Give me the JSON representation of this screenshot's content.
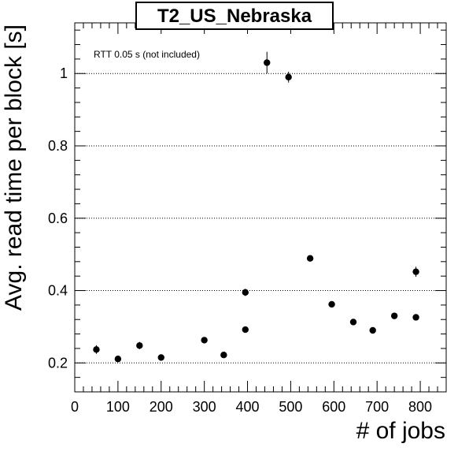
{
  "chart_data": {
    "type": "scatter",
    "title": "T2_US_Nebraska",
    "xlabel": "# of jobs",
    "ylabel": "Avg. read time per block [s]",
    "annotation": "RTT 0.05 s (not included)",
    "xlim": [
      0,
      860
    ],
    "ylim": [
      0.12,
      1.14
    ],
    "xticks": [
      0,
      100,
      200,
      300,
      400,
      500,
      600,
      700,
      800
    ],
    "yticks": [
      0.2,
      0.4,
      0.6,
      0.8,
      1.0
    ],
    "ytick_labels": [
      "0.2",
      "0.4",
      "0.6",
      "0.8",
      "1"
    ],
    "grid": "horizontal-dotted",
    "marker_color": "#000000",
    "points": [
      {
        "x": 50,
        "y": 0.237,
        "err": 0.012
      },
      {
        "x": 100,
        "y": 0.211,
        "err": 0.006
      },
      {
        "x": 150,
        "y": 0.248,
        "err": 0.01
      },
      {
        "x": 200,
        "y": 0.215,
        "err": 0.006
      },
      {
        "x": 300,
        "y": 0.263,
        "err": 0.007
      },
      {
        "x": 345,
        "y": 0.222,
        "err": 0.005
      },
      {
        "x": 395,
        "y": 0.395,
        "err": 0.01
      },
      {
        "x": 395,
        "y": 0.292,
        "err": 0.007
      },
      {
        "x": 445,
        "y": 1.03,
        "err": 0.03
      },
      {
        "x": 495,
        "y": 0.99,
        "err": 0.015
      },
      {
        "x": 545,
        "y": 0.489,
        "err": 0.007
      },
      {
        "x": 595,
        "y": 0.362,
        "err": 0.006
      },
      {
        "x": 645,
        "y": 0.313,
        "err": 0.005
      },
      {
        "x": 690,
        "y": 0.29,
        "err": 0.005
      },
      {
        "x": 740,
        "y": 0.33,
        "err": 0.005
      },
      {
        "x": 790,
        "y": 0.452,
        "err": 0.014
      },
      {
        "x": 790,
        "y": 0.326,
        "err": 0.005
      }
    ]
  }
}
